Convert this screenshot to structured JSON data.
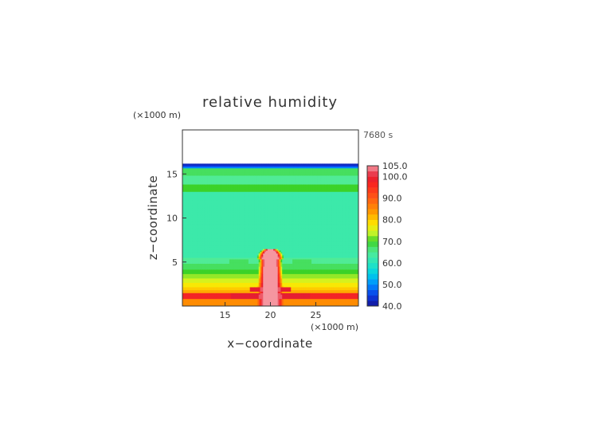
{
  "chart_data": {
    "type": "heatmap",
    "title": "relative humidity",
    "xlabel": "x−coordinate",
    "ylabel": "z−coordinate",
    "x_unit": "(×1000 m)",
    "y_unit": "(×1000 m)",
    "time_label": "7680 s",
    "xlim": [
      10.3,
      29.7
    ],
    "ylim": [
      0,
      20
    ],
    "x_ticks": [
      15,
      20,
      25
    ],
    "y_ticks": [
      5,
      10,
      15
    ],
    "colorbar": {
      "min": 40,
      "max": 105,
      "tick_values": [
        40,
        50,
        60,
        70,
        80,
        90,
        100,
        105
      ],
      "tick_labels": [
        "40.0",
        "50.0",
        "60.0",
        "70.0",
        "80.0",
        "90.0",
        "100.0",
        "105.0"
      ]
    },
    "field_description_levels": {
      "background_value": 62,
      "upper_dry_layer_top_z": 16.2,
      "upper_dry_layer_min": 40,
      "plume_center_x": 20,
      "plume_top_z": 6.5,
      "plume_core_value": 104,
      "surface_layer_value": 85
    }
  }
}
